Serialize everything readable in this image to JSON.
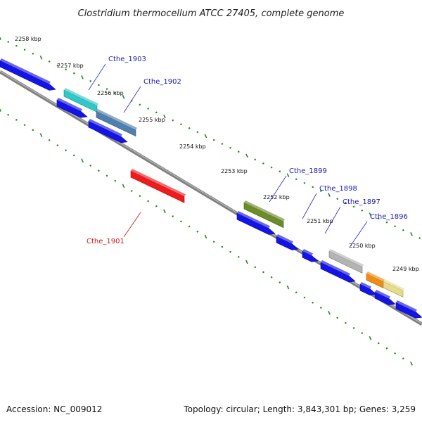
{
  "title": "Clostridium thermocellum ATCC 27405, complete genome",
  "accession": "Accession: NC_009012",
  "summary": "Topology: circular; Length: 3,843,301 bp; Genes: 3,259",
  "colors": {
    "backbone": "#808080",
    "ticks": "#1e8c1e",
    "label_forward": "#1a1ab4",
    "label_reverse": "#cc1a1a",
    "leader_forward": "#3a3ad0",
    "leader_reverse": "#d02020"
  },
  "kbp_ticks": [
    "2258 kbp",
    "2257 kbp",
    "2256 kbp",
    "2255 kbp",
    "2254 kbp",
    "2253 kbp",
    "2252 kbp",
    "2251 kbp",
    "2250 kbp",
    "2249 kbp"
  ],
  "labeled_genes": [
    {
      "name": "Cthe_1903",
      "color": "#30c8c8",
      "strand": "forward"
    },
    {
      "name": "Cthe_1902",
      "color": "#4f7fae",
      "strand": "forward"
    },
    {
      "name": "Cthe_1901",
      "color": "#ee1c1c",
      "strand": "reverse"
    },
    {
      "name": "Cthe_1899",
      "color": "#6b8c28",
      "strand": "forward"
    },
    {
      "name": "Cthe_1898",
      "color": "#1010e0",
      "strand": "forward"
    },
    {
      "name": "Cthe_1897",
      "color": "#1010e0",
      "strand": "forward"
    },
    {
      "name": "Cthe_1896",
      "color": "#b4b4b4",
      "strand": "forward"
    }
  ],
  "extra_gene_colors": {
    "blue": "#1414e6",
    "orange": "#f08c14",
    "khaki": "#e6dc8c"
  }
}
